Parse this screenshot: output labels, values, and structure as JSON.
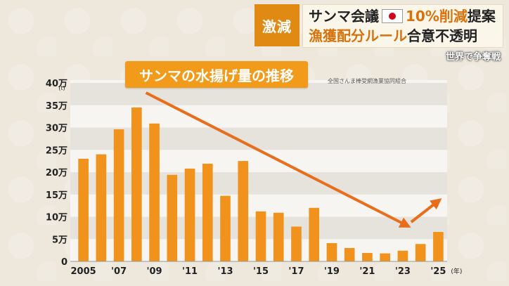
{
  "banner": {
    "tag": "激減",
    "line1_pre": "サンマ会議",
    "line1_highlight": "10%削減",
    "line1_post": "提案",
    "line2_orange": "漁獲配分ルール",
    "line2_dark": "合意不透明"
  },
  "subtag": "世界で争奪戦",
  "source": "全国さんま棒受網漁業協同組合",
  "chart_data": {
    "type": "bar",
    "title": "サンマの水揚げ量の推移",
    "y_unit": "(t)",
    "x_unit": "(年)",
    "ylim": [
      0,
      40
    ],
    "y_ticks": [
      "0",
      "5万",
      "10万",
      "15万",
      "20万",
      "25万",
      "30万",
      "35万",
      "40万"
    ],
    "categories": [
      "2005",
      "2006",
      "2007",
      "2008",
      "2009",
      "2010",
      "2011",
      "2012",
      "2013",
      "2014",
      "2015",
      "2016",
      "2017",
      "2018",
      "2019",
      "2020",
      "2021",
      "2022",
      "2023",
      "2024",
      "2025"
    ],
    "x_tick_labels": [
      "2005",
      "",
      "'07",
      "",
      "'09",
      "",
      "'11",
      "",
      "'13",
      "",
      "'15",
      "",
      "'17",
      "",
      "'19",
      "",
      "'21",
      "",
      "'23",
      "",
      "'25"
    ],
    "values": [
      23.0,
      24.0,
      29.6,
      34.5,
      30.9,
      19.4,
      20.8,
      21.9,
      14.7,
      22.5,
      11.2,
      10.9,
      7.8,
      12.0,
      4.1,
      3.0,
      1.9,
      1.8,
      2.4,
      3.9,
      6.6
    ],
    "value_unit": "万t",
    "bar_color": "#f0921c",
    "arrow_color": "#e86e1c",
    "grid": "alternating bands"
  }
}
